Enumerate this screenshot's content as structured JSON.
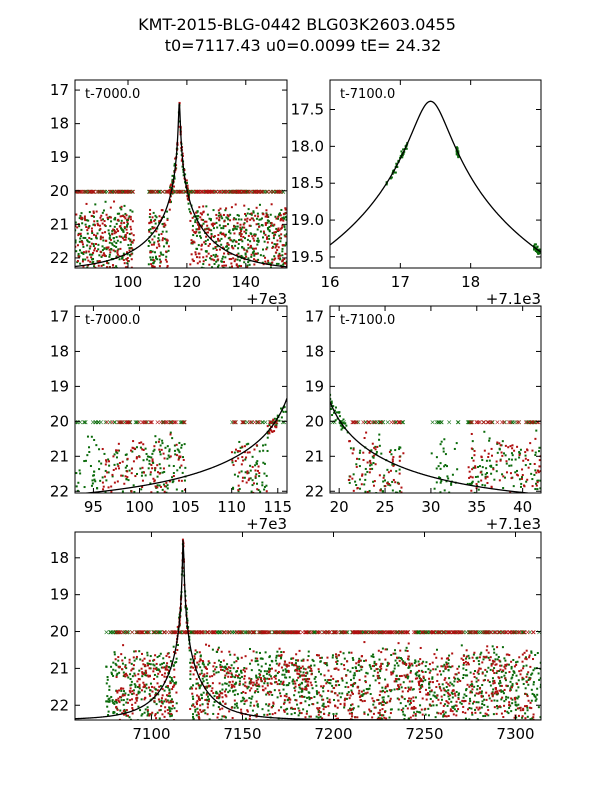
{
  "title_line1": "KMT-2015-BLG-0442 BLG03K2603.0455",
  "title_line2": "t0=7117.43 u0=0.0099 tE=  24.32",
  "colors": {
    "green": "#0a6a0a",
    "red": "#b01010",
    "model": "#000000"
  },
  "chart_data": [
    {
      "type": "scatter",
      "panel_label": "t-7000.0",
      "xlim": [
        82,
        154
      ],
      "ylim": [
        22.3,
        16.7
      ],
      "xticks": [
        100,
        120,
        140
      ],
      "xtick_labels": [
        "100",
        "120",
        "140"
      ],
      "yticks": [
        17,
        18,
        19,
        20,
        21,
        22
      ],
      "ytick_labels": [
        "17",
        "18",
        "19",
        "20",
        "21",
        "22"
      ],
      "x_offset_label": "+7e3",
      "model": {
        "t0": 117.43,
        "u0": 0.0099,
        "tE": 24.32,
        "baseline": 22.4
      },
      "series": [
        {
          "name": "green",
          "segments": [
            [
              82,
              102
            ],
            [
              107,
              154
            ]
          ]
        },
        {
          "name": "red",
          "segments": [
            [
              82,
              102
            ],
            [
              107,
              154
            ]
          ]
        }
      ]
    },
    {
      "type": "scatter",
      "panel_label": "t-7100.0",
      "xlim": [
        16,
        19
      ],
      "ylim": [
        19.65,
        17.1
      ],
      "xticks": [
        16,
        17,
        18
      ],
      "xtick_labels": [
        "16",
        "17",
        "18"
      ],
      "yticks": [
        17.5,
        18.0,
        18.5,
        19.0,
        19.5
      ],
      "ytick_labels": [
        "17.5",
        "18.0",
        "18.5",
        "19.0",
        "19.5"
      ],
      "x_offset_label": "+7.1e3",
      "model": {
        "t0": 17.43,
        "u0": 0.0099,
        "tE": 24.32,
        "baseline": 22.4
      },
      "series": [
        {
          "name": "green",
          "clusters": [
            [
              16.8,
              18.3
            ],
            [
              17.8,
              17.95
            ],
            [
              18.9,
              19.3
            ]
          ]
        }
      ]
    },
    {
      "type": "scatter",
      "panel_label": "t-7000.0",
      "xlim": [
        93,
        116
      ],
      "ylim": [
        22.05,
        16.7
      ],
      "xticks": [
        95,
        100,
        105,
        110,
        115
      ],
      "xtick_labels": [
        "95",
        "100",
        "105",
        "110",
        "115"
      ],
      "yticks": [
        17,
        18,
        19,
        20,
        21,
        22
      ],
      "ytick_labels": [
        "17",
        "18",
        "19",
        "20",
        "21",
        "22"
      ],
      "x_offset_label": "+7e3",
      "model": {
        "t0": 117.43,
        "u0": 0.0099,
        "tE": 24.32,
        "baseline": 22.4
      },
      "series": [
        {
          "name": "green",
          "segments": [
            [
              93,
              105
            ],
            [
              110,
              116
            ]
          ]
        },
        {
          "name": "red",
          "segments": [
            [
              96,
              105
            ],
            [
              110,
              115
            ]
          ]
        }
      ]
    },
    {
      "type": "scatter",
      "panel_label": "t-7100.0",
      "xlim": [
        19,
        42
      ],
      "ylim": [
        22.05,
        16.7
      ],
      "xticks": [
        20,
        25,
        30,
        35,
        40
      ],
      "xtick_labels": [
        "20",
        "25",
        "30",
        "35",
        "40"
      ],
      "yticks": [
        17,
        18,
        19,
        20,
        21,
        22
      ],
      "ytick_labels": [
        "17",
        "18",
        "19",
        "20",
        "21",
        "22"
      ],
      "x_offset_label": "+7.1e3",
      "model": {
        "t0": 17.43,
        "u0": 0.0099,
        "tE": 24.32,
        "baseline": 22.4
      },
      "series": [
        {
          "name": "green",
          "segments": [
            [
              19,
              27
            ],
            [
              30,
              33
            ],
            [
              34,
              42
            ]
          ]
        },
        {
          "name": "red",
          "segments": [
            [
              21,
              27
            ],
            [
              34,
              42
            ]
          ]
        }
      ]
    },
    {
      "type": "scatter",
      "panel_label": "",
      "xlim": [
        7058,
        7314
      ],
      "ylim": [
        22.4,
        17.3
      ],
      "xticks": [
        7100,
        7150,
        7200,
        7250,
        7300
      ],
      "xtick_labels": [
        "7100",
        "7150",
        "7200",
        "7250",
        "7300"
      ],
      "yticks": [
        18,
        19,
        20,
        21,
        22
      ],
      "ytick_labels": [
        "18",
        "19",
        "20",
        "21",
        "22"
      ],
      "x_offset_label": "",
      "model": {
        "t0": 7117.43,
        "u0": 0.0099,
        "tE": 24.32,
        "baseline": 22.4
      },
      "series": [
        {
          "name": "green",
          "segments": [
            [
              7075,
              7314
            ]
          ]
        },
        {
          "name": "red",
          "segments": [
            [
              7080,
              7310
            ]
          ]
        }
      ]
    }
  ]
}
